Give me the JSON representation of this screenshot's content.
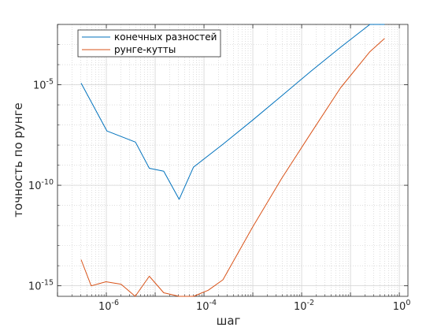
{
  "chart_data": {
    "type": "line",
    "xscale": "log",
    "yscale": "log",
    "xlim": [
      1e-07,
      1.5
    ],
    "ylim": [
      3e-16,
      0.01
    ],
    "grid": true,
    "minor_grid": true,
    "legend_position": "top-left",
    "xlabel": "шаг",
    "ylabel": "точность по рунге",
    "x_ticks": [
      {
        "value": 1e-06,
        "base": "10",
        "exp": "-6"
      },
      {
        "value": 0.0001,
        "base": "10",
        "exp": "-4"
      },
      {
        "value": 0.01,
        "base": "10",
        "exp": "-2"
      },
      {
        "value": 1,
        "base": "10",
        "exp": "0"
      }
    ],
    "y_ticks": [
      {
        "value": 1e-15,
        "base": "10",
        "exp": "-15"
      },
      {
        "value": 1e-10,
        "base": "10",
        "exp": "-10"
      },
      {
        "value": 1e-05,
        "base": "10",
        "exp": "-5"
      }
    ],
    "series": [
      {
        "name": "конечных разностей",
        "color": "#0072BD",
        "x": [
          3.05e-07,
          1.03e-06,
          3.95e-06,
          7.6e-06,
          1.5e-05,
          3.1e-05,
          6.1e-05,
          0.000244,
          0.00098,
          0.0039,
          0.0156,
          0.0625,
          0.25,
          0.5
        ],
        "y": [
          1.2e-05,
          5e-08,
          1.4e-08,
          7e-10,
          5e-10,
          2e-11,
          8e-10,
          1.1e-08,
          1.7e-07,
          2.8e-06,
          4.8e-05,
          0.00073,
          0.01,
          0.06
        ]
      },
      {
        "name": "рунге-кутты",
        "color": "#D95319",
        "x": [
          3.05e-07,
          4.9e-07,
          9.8e-07,
          2e-06,
          3.9e-06,
          7.6e-06,
          1.5e-05,
          3.1e-05,
          6.1e-05,
          0.000122,
          0.000244,
          0.00098,
          0.0039,
          0.0156,
          0.0625,
          0.25,
          0.5
        ],
        "y": [
          2e-14,
          1e-15,
          1.6e-15,
          1.2e-15,
          2.6e-16,
          3e-15,
          4.5e-16,
          6e-17,
          1.8e-16,
          6e-16,
          2e-15,
          8e-13,
          2.2e-10,
          4e-08,
          7e-06,
          0.00044,
          0.002
        ]
      }
    ]
  }
}
